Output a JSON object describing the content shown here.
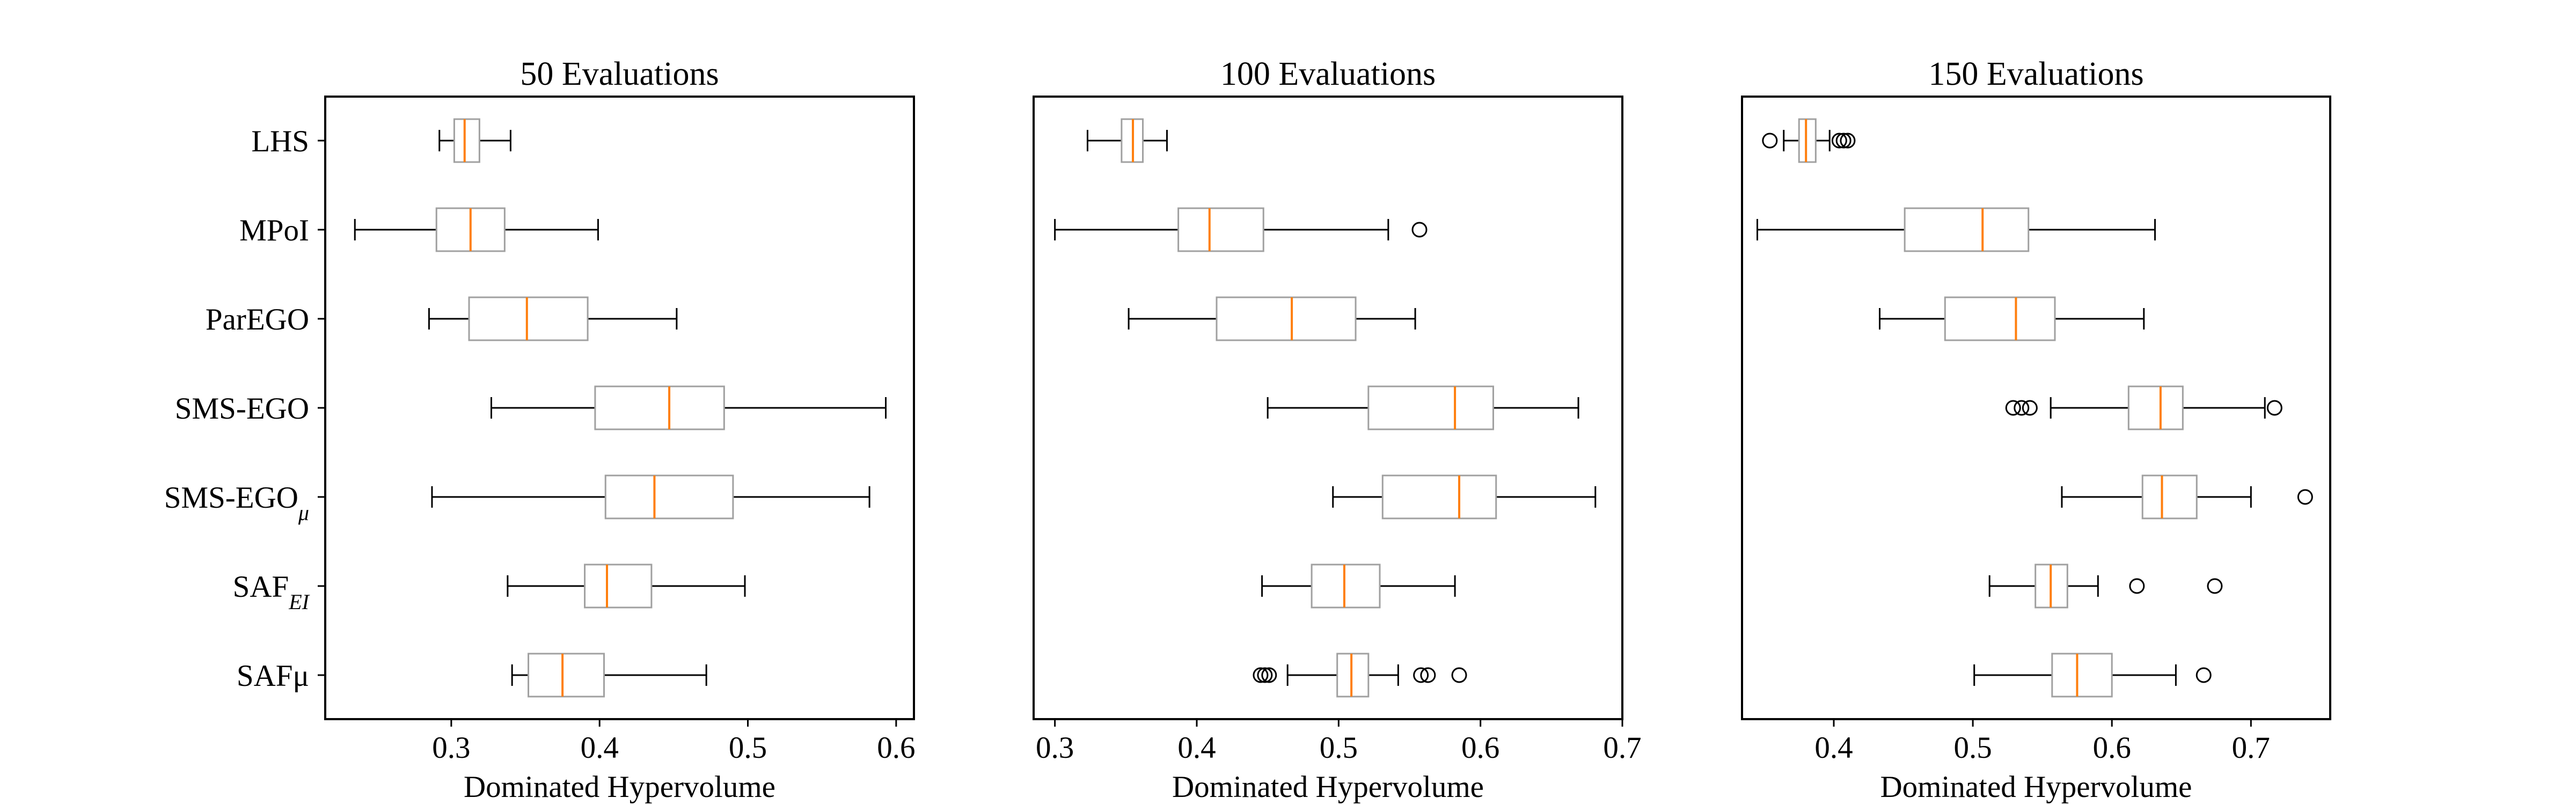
{
  "figure": {
    "colors": {
      "box": "#a0a0a0",
      "median": "#ff7f0e",
      "whisker": "#000000",
      "axes": "#000000",
      "background": "#ffffff"
    }
  },
  "chart_data": [
    {
      "type": "boxplot",
      "orientation": "horizontal",
      "title": "50 Evaluations",
      "xlabel": "Dominated Hypervolume",
      "xlim": [
        0.215,
        0.612
      ],
      "xticks": [
        0.3,
        0.4,
        0.5,
        0.6
      ],
      "xtick_labels": [
        "0.3",
        "0.4",
        "0.5",
        "0.6"
      ],
      "show_category_labels": true,
      "categories": [
        {
          "base": "LHS",
          "sub": ""
        },
        {
          "base": "MPoI",
          "sub": ""
        },
        {
          "base": "ParEGO",
          "sub": ""
        },
        {
          "base": "SMS-EGO",
          "sub": ""
        },
        {
          "base": "SMS-EGO",
          "sub": "μ"
        },
        {
          "base": "SAF",
          "sub": "EI"
        },
        {
          "base": "SAFμ",
          "sub": ""
        }
      ],
      "boxes": [
        {
          "whislo": 0.292,
          "q1": 0.302,
          "med": 0.309,
          "q3": 0.319,
          "whishi": 0.34,
          "fliers": []
        },
        {
          "whislo": 0.235,
          "q1": 0.29,
          "med": 0.313,
          "q3": 0.336,
          "whishi": 0.399,
          "fliers": []
        },
        {
          "whislo": 0.285,
          "q1": 0.312,
          "med": 0.351,
          "q3": 0.392,
          "whishi": 0.452,
          "fliers": []
        },
        {
          "whislo": 0.327,
          "q1": 0.397,
          "med": 0.447,
          "q3": 0.484,
          "whishi": 0.593,
          "fliers": []
        },
        {
          "whislo": 0.287,
          "q1": 0.404,
          "med": 0.437,
          "q3": 0.49,
          "whishi": 0.582,
          "fliers": []
        },
        {
          "whislo": 0.338,
          "q1": 0.39,
          "med": 0.405,
          "q3": 0.435,
          "whishi": 0.498,
          "fliers": []
        },
        {
          "whislo": 0.341,
          "q1": 0.352,
          "med": 0.375,
          "q3": 0.403,
          "whishi": 0.472,
          "fliers": []
        }
      ]
    },
    {
      "type": "boxplot",
      "orientation": "horizontal",
      "title": "100 Evaluations",
      "xlabel": "Dominated Hypervolume",
      "xlim": [
        0.285,
        0.7
      ],
      "xticks": [
        0.3,
        0.4,
        0.5,
        0.6,
        0.7
      ],
      "xtick_labels": [
        "0.3",
        "0.4",
        "0.5",
        "0.6",
        "0.7"
      ],
      "show_category_labels": false,
      "categories": [
        {
          "base": "LHS",
          "sub": ""
        },
        {
          "base": "MPoI",
          "sub": ""
        },
        {
          "base": "ParEGO",
          "sub": ""
        },
        {
          "base": "SMS-EGO",
          "sub": ""
        },
        {
          "base": "SMS-EGO",
          "sub": "μ"
        },
        {
          "base": "SAF",
          "sub": "EI"
        },
        {
          "base": "SAFμ",
          "sub": ""
        }
      ],
      "boxes": [
        {
          "whislo": 0.323,
          "q1": 0.347,
          "med": 0.355,
          "q3": 0.362,
          "whishi": 0.379,
          "fliers": []
        },
        {
          "whislo": 0.3,
          "q1": 0.387,
          "med": 0.409,
          "q3": 0.447,
          "whishi": 0.535,
          "fliers": [
            0.557
          ]
        },
        {
          "whislo": 0.352,
          "q1": 0.414,
          "med": 0.467,
          "q3": 0.512,
          "whishi": 0.554,
          "fliers": []
        },
        {
          "whislo": 0.45,
          "q1": 0.521,
          "med": 0.582,
          "q3": 0.609,
          "whishi": 0.669,
          "fliers": []
        },
        {
          "whislo": 0.496,
          "q1": 0.531,
          "med": 0.585,
          "q3": 0.611,
          "whishi": 0.681,
          "fliers": []
        },
        {
          "whislo": 0.446,
          "q1": 0.481,
          "med": 0.504,
          "q3": 0.529,
          "whishi": 0.582,
          "fliers": []
        },
        {
          "whislo": 0.464,
          "q1": 0.499,
          "med": 0.509,
          "q3": 0.521,
          "whishi": 0.542,
          "fliers": [
            0.445,
            0.448,
            0.451,
            0.558,
            0.563,
            0.585
          ]
        }
      ]
    },
    {
      "type": "boxplot",
      "orientation": "horizontal",
      "title": "150 Evaluations",
      "xlabel": "Dominated Hypervolume",
      "xlim": [
        0.334,
        0.757
      ],
      "xticks": [
        0.4,
        0.5,
        0.6,
        0.7
      ],
      "xtick_labels": [
        "0.4",
        "0.5",
        "0.6",
        "0.7"
      ],
      "show_category_labels": false,
      "categories": [
        {
          "base": "LHS",
          "sub": ""
        },
        {
          "base": "MPoI",
          "sub": ""
        },
        {
          "base": "ParEGO",
          "sub": ""
        },
        {
          "base": "SMS-EGO",
          "sub": ""
        },
        {
          "base": "SMS-EGO",
          "sub": "μ"
        },
        {
          "base": "SAF",
          "sub": "EI"
        },
        {
          "base": "SAFμ",
          "sub": ""
        }
      ],
      "boxes": [
        {
          "whislo": 0.364,
          "q1": 0.375,
          "med": 0.38,
          "q3": 0.387,
          "whishi": 0.397,
          "fliers": [
            0.354,
            0.404,
            0.407,
            0.41
          ]
        },
        {
          "whislo": 0.345,
          "q1": 0.451,
          "med": 0.507,
          "q3": 0.54,
          "whishi": 0.631,
          "fliers": []
        },
        {
          "whislo": 0.433,
          "q1": 0.48,
          "med": 0.531,
          "q3": 0.559,
          "whishi": 0.623,
          "fliers": []
        },
        {
          "whislo": 0.556,
          "q1": 0.612,
          "med": 0.635,
          "q3": 0.651,
          "whishi": 0.71,
          "fliers": [
            0.529,
            0.535,
            0.541,
            0.717
          ]
        },
        {
          "whislo": 0.564,
          "q1": 0.622,
          "med": 0.636,
          "q3": 0.661,
          "whishi": 0.7,
          "fliers": [
            0.739
          ]
        },
        {
          "whislo": 0.512,
          "q1": 0.545,
          "med": 0.556,
          "q3": 0.568,
          "whishi": 0.59,
          "fliers": [
            0.618,
            0.674
          ]
        },
        {
          "whislo": 0.501,
          "q1": 0.557,
          "med": 0.575,
          "q3": 0.6,
          "whishi": 0.646,
          "fliers": [
            0.666
          ]
        }
      ]
    }
  ]
}
